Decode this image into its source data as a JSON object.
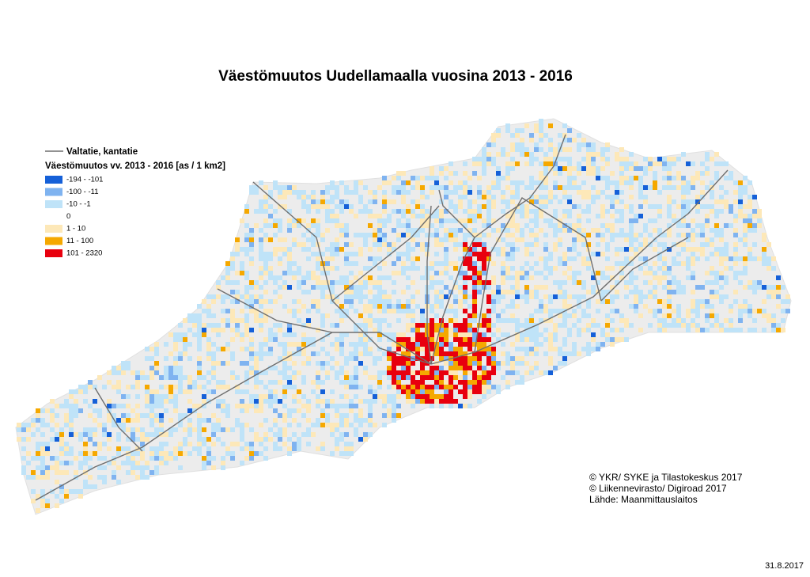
{
  "title": "Väestömuutos Uudellamaalla vuosina 2013 - 2016",
  "legend": {
    "road": "Valtatie, kantatie",
    "title": "Väestömuutos vv. 2013 - 2016 [as / 1 km2]",
    "items": [
      {
        "label": "-194 - -101",
        "color": "#1560d8"
      },
      {
        "label": "-100 - -11",
        "color": "#7fb3f0"
      },
      {
        "label": "-10 - -1",
        "color": "#bfe3f8"
      },
      {
        "label": "0",
        "color": "#ffffff"
      },
      {
        "label": "1 - 10",
        "color": "#fde8b8"
      },
      {
        "label": "11 - 100",
        "color": "#f5a800"
      },
      {
        "label": "101 - 2320",
        "color": "#e8000e"
      }
    ]
  },
  "credits": [
    "© YKR/ SYKE ja Tilastokeskus 2017",
    "© Liikennevirasto/ Digiroad 2017",
    "Lähde: Maanmittauslaitos"
  ],
  "date": "31.8.2017"
}
